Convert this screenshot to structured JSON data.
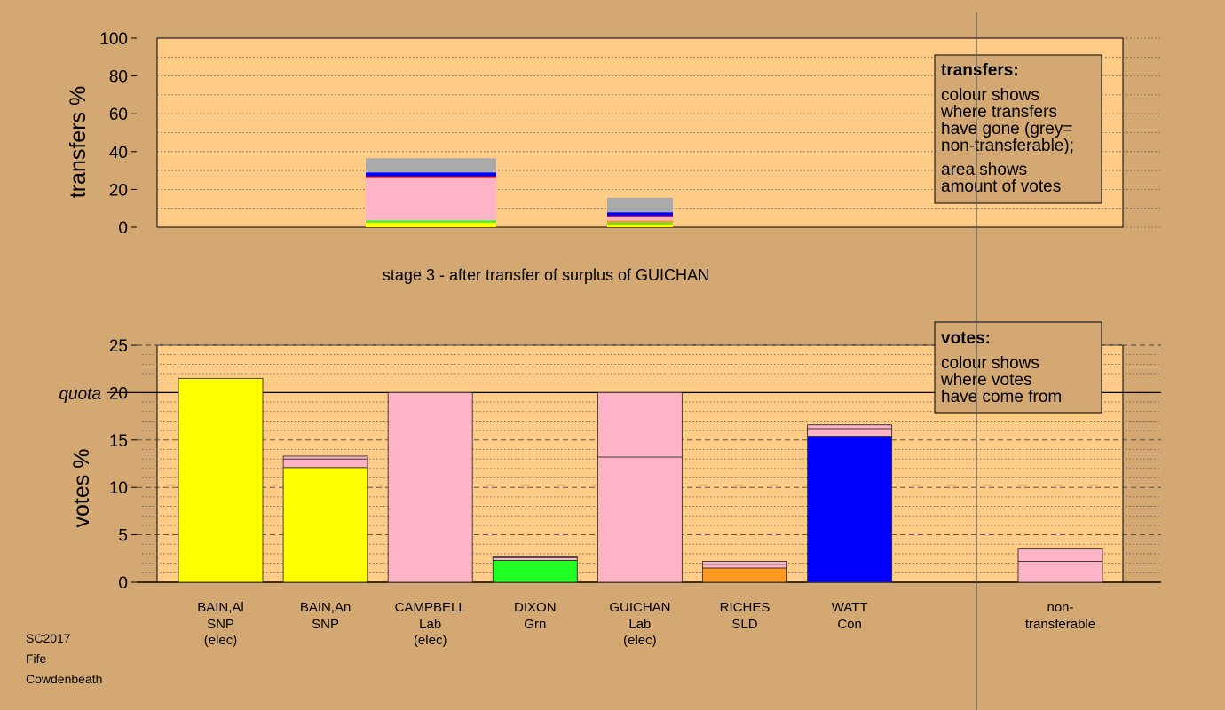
{
  "meta": {
    "election": "SC2017",
    "council": "Fife",
    "ward": "Cowdenbeath"
  },
  "chart_data": [
    {
      "type": "bar",
      "stacked": true,
      "ylabel": "transfers %",
      "ylim": [
        0,
        100
      ],
      "yticks": [
        0,
        20,
        40,
        60,
        80,
        100
      ],
      "stage_title": "stage 3 - after transfer of surplus of GUICHAN",
      "legend": {
        "title": "transfers:",
        "lines1": [
          "colour shows",
          "where transfers",
          "have gone (grey=",
          "non-transferable);"
        ],
        "lines2": [
          "area shows",
          "amount of votes"
        ]
      },
      "bars": [
        {
          "label": "CAMPBELL",
          "segments": [
            {
              "value": 2.5,
              "color": "#ffff00"
            },
            {
              "value": 1.0,
              "color": "#22ff22"
            },
            {
              "value": 22.5,
              "color": "#ffb3c6"
            },
            {
              "value": 0.8,
              "color": "#ff0000"
            },
            {
              "value": 2.2,
              "color": "#0000ff"
            },
            {
              "value": 7.5,
              "color": "#aaaaaa"
            }
          ]
        },
        {
          "label": "GUICHAN",
          "segments": [
            {
              "value": 1.5,
              "color": "#ffff00"
            },
            {
              "value": 0.8,
              "color": "#22ff22"
            },
            {
              "value": 1.2,
              "color": "#ff9922"
            },
            {
              "value": 2.0,
              "color": "#ffb3c6"
            },
            {
              "value": 0.5,
              "color": "#ff0000"
            },
            {
              "value": 1.9,
              "color": "#0000ff"
            },
            {
              "value": 7.7,
              "color": "#aaaaaa"
            }
          ]
        }
      ]
    },
    {
      "type": "bar",
      "stacked": true,
      "ylabel": "votes %",
      "ylim": [
        0,
        25
      ],
      "yticks": [
        0,
        5,
        10,
        15,
        20,
        25
      ],
      "quota": 20,
      "quota_label": "quota",
      "legend": {
        "title": "votes:",
        "lines": [
          "colour shows",
          "where votes",
          "have come from"
        ]
      },
      "candidates": [
        {
          "name": "BAIN,Al",
          "party": "SNP",
          "status": "(elec)",
          "segments": [
            {
              "value": 21.5,
              "color": "#ffff00"
            }
          ]
        },
        {
          "name": "BAIN,An",
          "party": "SNP",
          "status": "",
          "segments": [
            {
              "value": 12.1,
              "color": "#ffff00"
            },
            {
              "value": 0.9,
              "color": "#ffb3c6"
            },
            {
              "value": 0.3,
              "color": "#ffb3c6"
            }
          ]
        },
        {
          "name": "CAMPBELL",
          "party": "Lab",
          "status": "(elec)",
          "segments": [
            {
              "value": 20.0,
              "color": "#ffb3c6"
            }
          ]
        },
        {
          "name": "DIXON",
          "party": "Grn",
          "status": "",
          "segments": [
            {
              "value": 2.3,
              "color": "#22ff22"
            },
            {
              "value": 0.3,
              "color": "#ffb3c6"
            },
            {
              "value": 0.1,
              "color": "#ffb3c6"
            }
          ]
        },
        {
          "name": "GUICHAN",
          "party": "Lab",
          "status": "(elec)",
          "segments": [
            {
              "value": 13.2,
              "color": "#ffb3c6"
            },
            {
              "value": 6.8,
              "color": "#ffb3c6"
            }
          ]
        },
        {
          "name": "RICHES",
          "party": "SLD",
          "status": "",
          "segments": [
            {
              "value": 1.5,
              "color": "#ff9922"
            },
            {
              "value": 0.4,
              "color": "#ffb3c6"
            },
            {
              "value": 0.3,
              "color": "#ffb3c6"
            }
          ]
        },
        {
          "name": "WATT",
          "party": "Con",
          "status": "",
          "segments": [
            {
              "value": 15.4,
              "color": "#0000ff"
            },
            {
              "value": 0.8,
              "color": "#ffb3c6"
            },
            {
              "value": 0.4,
              "color": "#ffb3c6"
            }
          ]
        }
      ],
      "nontransferable": {
        "line1": "non-",
        "line2": "transferable",
        "segments": [
          {
            "value": 2.2,
            "color": "#ffb3c6"
          },
          {
            "value": 1.3,
            "color": "#ffb3c6"
          }
        ]
      }
    }
  ]
}
